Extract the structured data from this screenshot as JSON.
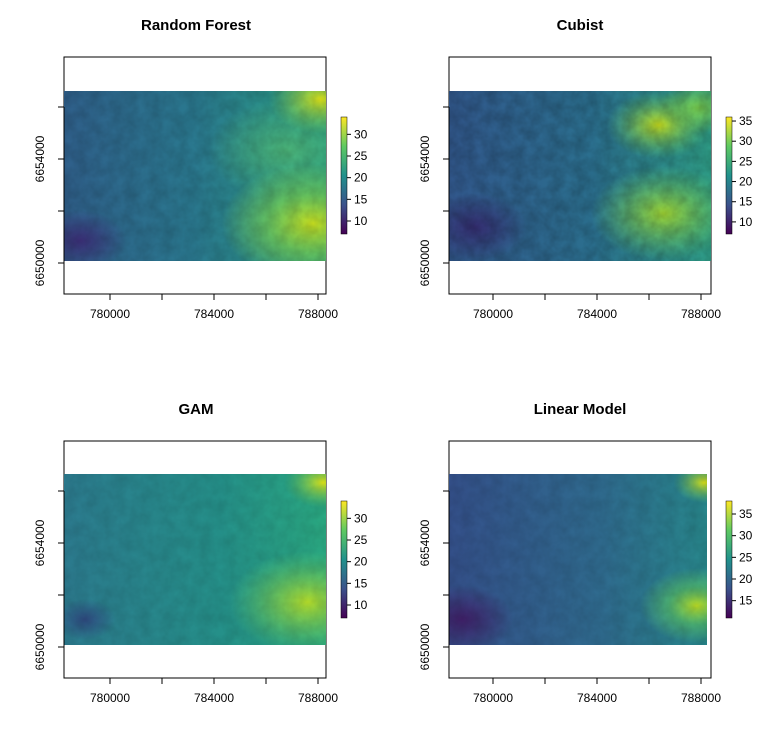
{
  "chart_data": [
    {
      "type": "heatmap",
      "title": "Random Forest",
      "x_ticks": [
        780000,
        784000,
        788000
      ],
      "y_ticks": [
        6650000,
        6654000
      ],
      "colorbar_ticks": [
        10,
        15,
        20,
        25,
        30
      ],
      "color_range": [
        7,
        34
      ],
      "colormap": [
        "#440154",
        "#3b528b",
        "#21918c",
        "#5ec962",
        "#fde725"
      ],
      "grid": false,
      "legend": "right"
    },
    {
      "type": "heatmap",
      "title": "Cubist",
      "x_ticks": [
        780000,
        784000,
        788000
      ],
      "y_ticks": [
        6650000,
        6654000
      ],
      "colorbar_ticks": [
        10,
        15,
        20,
        25,
        30,
        35
      ],
      "color_range": [
        7,
        36
      ],
      "colormap": [
        "#440154",
        "#3b528b",
        "#21918c",
        "#5ec962",
        "#fde725"
      ],
      "grid": false,
      "legend": "right"
    },
    {
      "type": "heatmap",
      "title": "GAM",
      "x_ticks": [
        780000,
        784000,
        788000
      ],
      "y_ticks": [
        6650000,
        6654000
      ],
      "colorbar_ticks": [
        10,
        15,
        20,
        25,
        30
      ],
      "color_range": [
        7,
        34
      ],
      "colormap": [
        "#440154",
        "#3b528b",
        "#21918c",
        "#5ec962",
        "#fde725"
      ],
      "grid": false,
      "legend": "right"
    },
    {
      "type": "heatmap",
      "title": "Linear Model",
      "x_ticks": [
        780000,
        784000,
        788000
      ],
      "y_ticks": [
        6650000,
        6654000
      ],
      "colorbar_ticks": [
        15,
        20,
        25,
        30,
        35
      ],
      "color_range": [
        11,
        38
      ],
      "colormap": [
        "#440154",
        "#3b528b",
        "#21918c",
        "#5ec962",
        "#fde725"
      ],
      "grid": false,
      "legend": "right"
    }
  ]
}
